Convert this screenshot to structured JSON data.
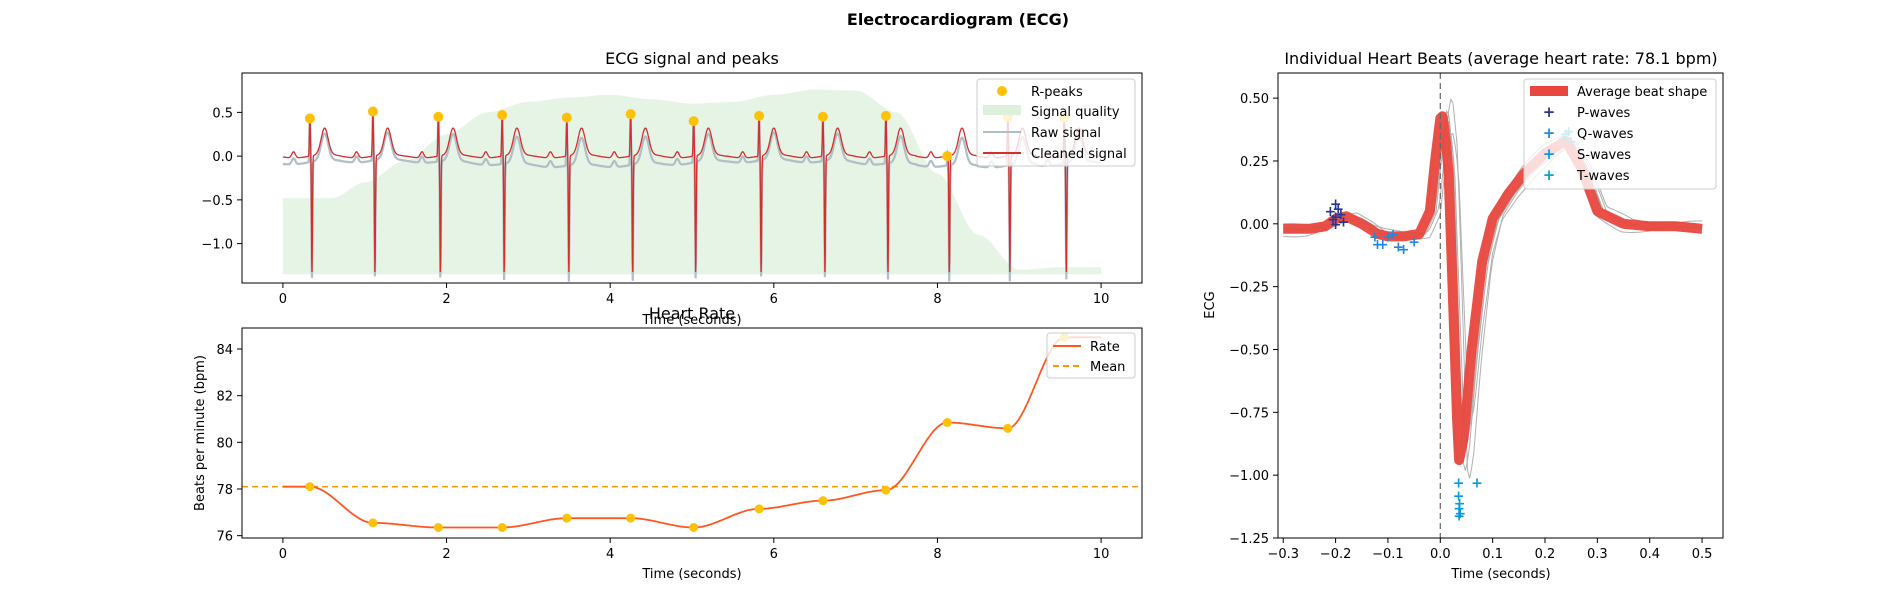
{
  "figure": {
    "suptitle": "Electrocardiogram (ECG)"
  },
  "colors": {
    "rpeak": "#ffc107",
    "quality": "#dcf0dc",
    "raw": "#b0bec5",
    "clean": "#d32f2f",
    "rate": "#ff5722",
    "mean": "#ff9800",
    "avgbeat": "#e8473e",
    "p": "#283593",
    "q": "#1e88e5",
    "s": "#039be5",
    "t": "#00acc1",
    "beatline": "#b0b0b0"
  },
  "chart_data": [
    {
      "id": "ecg",
      "type": "line",
      "title": "ECG signal and peaks",
      "xlabel": "Time (seconds)",
      "ylabel": "",
      "xlim": [
        -0.5,
        10.5
      ],
      "ylim": [
        -1.45,
        0.95
      ],
      "xticks": [
        0,
        2,
        4,
        6,
        8,
        10
      ],
      "yticks": [
        0.5,
        0.0,
        -0.5,
        -1.0
      ],
      "ytick_labels": [
        "0.5",
        "0.0",
        "−0.5",
        "−1.0"
      ],
      "grid": false,
      "legend_position": "top-right",
      "legend": [
        "R-peaks",
        "Signal quality",
        "Raw signal",
        "Cleaned signal"
      ],
      "r_peaks": {
        "x": [
          0.33,
          1.1,
          1.9,
          2.68,
          3.47,
          4.25,
          5.02,
          5.82,
          6.6,
          7.37,
          8.12,
          8.86,
          9.55
        ],
        "y": [
          0.43,
          0.51,
          0.45,
          0.47,
          0.44,
          0.48,
          0.4,
          0.46,
          0.45,
          0.46,
          0.0,
          0.45,
          0.44
        ]
      },
      "signal_quality": {
        "x": [
          0,
          0.6,
          1,
          1.5,
          2,
          2.5,
          3,
          3.5,
          4,
          4.5,
          5,
          5.5,
          6,
          6.5,
          7,
          7.5,
          8,
          8.5,
          9,
          9.5,
          10
        ],
        "y": [
          -0.48,
          -0.48,
          -0.3,
          -0.05,
          0.25,
          0.5,
          0.62,
          0.67,
          0.7,
          0.65,
          0.6,
          0.62,
          0.7,
          0.76,
          0.75,
          0.5,
          -0.2,
          -0.9,
          -1.3,
          -1.27,
          -1.27
        ]
      },
      "quality_baseline": -1.35
    },
    {
      "id": "rate",
      "type": "line",
      "title": "Heart Rate",
      "xlabel": "Time (seconds)",
      "ylabel": "Beats per minute (bpm)",
      "xlim": [
        -0.5,
        10.5
      ],
      "ylim": [
        75.9,
        84.9
      ],
      "xticks": [
        0,
        2,
        4,
        6,
        8,
        10
      ],
      "yticks": [
        76,
        78,
        80,
        82,
        84
      ],
      "grid": false,
      "legend_position": "top-right",
      "legend": [
        "Rate",
        "Mean"
      ],
      "mean": 78.1,
      "points": {
        "x": [
          0.33,
          1.1,
          1.9,
          2.68,
          3.47,
          4.25,
          5.02,
          5.82,
          6.6,
          7.37,
          8.12,
          8.86,
          9.55
        ],
        "y": [
          78.1,
          76.55,
          76.35,
          76.35,
          76.75,
          76.75,
          76.35,
          77.15,
          77.5,
          77.95,
          80.85,
          80.6,
          84.5
        ]
      }
    },
    {
      "id": "beats",
      "type": "line",
      "title": "Individual Heart Beats (average heart rate: 78.1 bpm)",
      "xlabel": "Time (seconds)",
      "ylabel": "ECG",
      "xlim": [
        -0.31,
        0.54
      ],
      "ylim": [
        -1.25,
        0.6
      ],
      "xticks": [
        -0.3,
        -0.2,
        -0.1,
        0.0,
        0.1,
        0.2,
        0.3,
        0.4,
        0.5
      ],
      "xtick_labels": [
        "−0.3",
        "−0.2",
        "−0.1",
        "0.0",
        "0.1",
        "0.2",
        "0.3",
        "0.4",
        "0.5"
      ],
      "yticks": [
        0.5,
        0.25,
        0.0,
        -0.25,
        -0.5,
        -0.75,
        -1.0,
        -1.25
      ],
      "ytick_labels": [
        "0.50",
        "0.25",
        "0.00",
        "−0.25",
        "−0.50",
        "−0.75",
        "−1.00",
        "−1.25"
      ],
      "grid": false,
      "legend_position": "top-right",
      "legend": [
        "Average beat shape",
        "P-waves",
        "Q-waves",
        "S-waves",
        "T-waves"
      ],
      "vline_x": 0.0,
      "average": {
        "x": [
          -0.3,
          -0.25,
          -0.22,
          -0.2,
          -0.18,
          -0.15,
          -0.12,
          -0.1,
          -0.07,
          -0.04,
          -0.02,
          -0.01,
          0.0,
          0.005,
          0.015,
          0.025,
          0.035,
          0.045,
          0.06,
          0.08,
          0.1,
          0.13,
          0.16,
          0.2,
          0.24,
          0.27,
          0.3,
          0.35,
          0.4,
          0.45,
          0.5
        ],
        "y": [
          -0.02,
          -0.02,
          -0.01,
          0.02,
          0.03,
          0.0,
          -0.04,
          -0.05,
          -0.05,
          -0.04,
          0.05,
          0.25,
          0.42,
          0.43,
          0.25,
          -0.35,
          -0.95,
          -0.85,
          -0.5,
          -0.15,
          0.02,
          0.12,
          0.2,
          0.28,
          0.33,
          0.22,
          0.05,
          0.0,
          -0.01,
          -0.01,
          -0.02
        ]
      },
      "p_waves": {
        "x": [
          -0.21,
          -0.205,
          -0.2,
          -0.2,
          -0.195,
          -0.19,
          -0.185,
          -0.2
        ],
        "y": [
          0.05,
          0.02,
          0.03,
          0.08,
          0.06,
          0.04,
          0.01,
          0.0
        ]
      },
      "q_waves": {
        "x": [
          -0.125,
          -0.12,
          -0.11,
          -0.1,
          -0.09,
          -0.08,
          -0.07,
          -0.05
        ],
        "y": [
          -0.05,
          -0.08,
          -0.08,
          -0.05,
          -0.04,
          -0.09,
          -0.1,
          -0.07
        ]
      },
      "s_waves": {
        "x": [
          0.035,
          0.035,
          0.037,
          0.036,
          0.038,
          0.036,
          0.07
        ],
        "y": [
          -1.03,
          -1.08,
          -1.11,
          -1.13,
          -1.15,
          -1.16,
          -1.03
        ]
      },
      "t_waves": {
        "x": [
          0.235,
          0.24,
          0.245,
          0.25
        ],
        "y": [
          0.34,
          0.36,
          0.37,
          0.33
        ]
      }
    }
  ]
}
